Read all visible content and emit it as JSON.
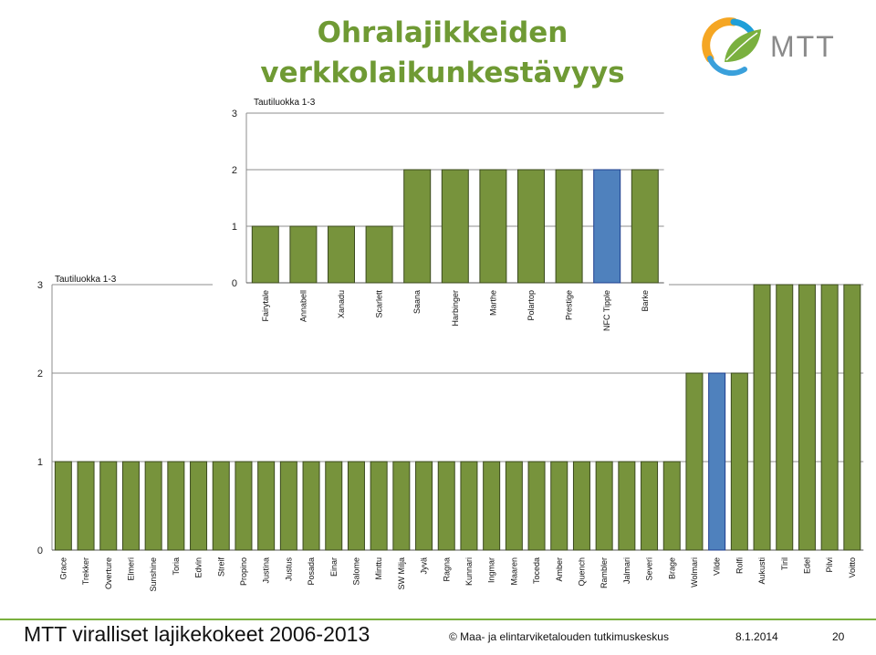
{
  "slide": {
    "title_line1": "Ohralajikkeiden",
    "title_line2": "verkkolaikunkestävyys",
    "logo_text": "MTT",
    "footer_title": "MTT viralliset lajikekokeet 2006-2013",
    "footer_copyright": "© Maa- ja elintarviketalouden tutkimuskeskus",
    "footer_date": "8.1.2014",
    "footer_page": "20"
  },
  "colors": {
    "title": "#6f9a34",
    "bar_green": "#77933c",
    "bar_blue": "#4f81bd",
    "footer_rule": "#7ab03f"
  },
  "chart_data": [
    {
      "type": "bar",
      "ylabel": "Tautiluokka 1-3",
      "ylim": [
        0,
        3
      ],
      "yticks": [
        0,
        1,
        2,
        3
      ],
      "grid": true,
      "categories": [
        "Grace",
        "Trekker",
        "Overture",
        "Elmeri",
        "Sunshine",
        "Toria",
        "Edvin",
        "Streif",
        "Propino",
        "Justina",
        "Justus",
        "Posada",
        "Einar",
        "Salome",
        "Minttu",
        "SW Milja",
        "Jyvä",
        "Ragna",
        "Kunnari",
        "Ingmar",
        "Maaren",
        "Toceda",
        "Amber",
        "Quench",
        "Rambler",
        "Jalmari",
        "Severi",
        "Brage",
        "Wolmari",
        "Vilde",
        "Rolfi",
        "Aukusti",
        "Tiril",
        "Edel",
        "Pilvi",
        "Voitto"
      ],
      "values": [
        1,
        1,
        1,
        1,
        1,
        1,
        1,
        1,
        1,
        1,
        1,
        1,
        1,
        1,
        1,
        1,
        1,
        1,
        1,
        1,
        1,
        1,
        1,
        1,
        1,
        1,
        1,
        1,
        2,
        2,
        2,
        3,
        3,
        3,
        3,
        3
      ],
      "highlight": [
        "Vilde"
      ]
    },
    {
      "type": "bar",
      "ylabel": "Tautiluokka 1-3",
      "ylim": [
        0,
        3
      ],
      "yticks": [
        0,
        1,
        2,
        3
      ],
      "grid": true,
      "categories": [
        "Fairytale",
        "Annabell",
        "Xanadu",
        "Scarlett",
        "Saana",
        "Harbinger",
        "Marthe",
        "Polartop",
        "Prestige",
        "NFC Tipple",
        "Barke"
      ],
      "values": [
        1,
        1,
        1,
        1,
        2,
        2,
        2,
        2,
        2,
        2,
        2
      ],
      "highlight": [
        "NFC Tipple"
      ]
    }
  ]
}
